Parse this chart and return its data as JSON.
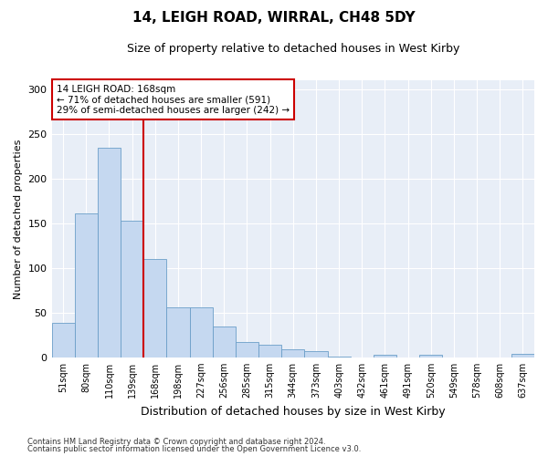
{
  "title1": "14, LEIGH ROAD, WIRRAL, CH48 5DY",
  "title2": "Size of property relative to detached houses in West Kirby",
  "xlabel": "Distribution of detached houses by size in West Kirby",
  "ylabel": "Number of detached properties",
  "categories": [
    "51sqm",
    "80sqm",
    "110sqm",
    "139sqm",
    "168sqm",
    "198sqm",
    "227sqm",
    "256sqm",
    "285sqm",
    "315sqm",
    "344sqm",
    "373sqm",
    "403sqm",
    "432sqm",
    "461sqm",
    "491sqm",
    "520sqm",
    "549sqm",
    "578sqm",
    "608sqm",
    "637sqm"
  ],
  "values": [
    39,
    161,
    235,
    153,
    110,
    56,
    56,
    34,
    17,
    14,
    9,
    7,
    1,
    0,
    3,
    0,
    3,
    0,
    0,
    0,
    4
  ],
  "bar_color": "#c5d8f0",
  "bar_edge_color": "#6b9ec8",
  "vline_color": "#cc0000",
  "vline_x_index": 4,
  "annotation_text": "14 LEIGH ROAD: 168sqm\n← 71% of detached houses are smaller (591)\n29% of semi-detached houses are larger (242) →",
  "annotation_box_color": "#ffffff",
  "annotation_box_edge_color": "#cc0000",
  "ylim": [
    0,
    310
  ],
  "yticks": [
    0,
    50,
    100,
    150,
    200,
    250,
    300
  ],
  "background_color": "#e8eef7",
  "footer1": "Contains HM Land Registry data © Crown copyright and database right 2024.",
  "footer2": "Contains public sector information licensed under the Open Government Licence v3.0."
}
